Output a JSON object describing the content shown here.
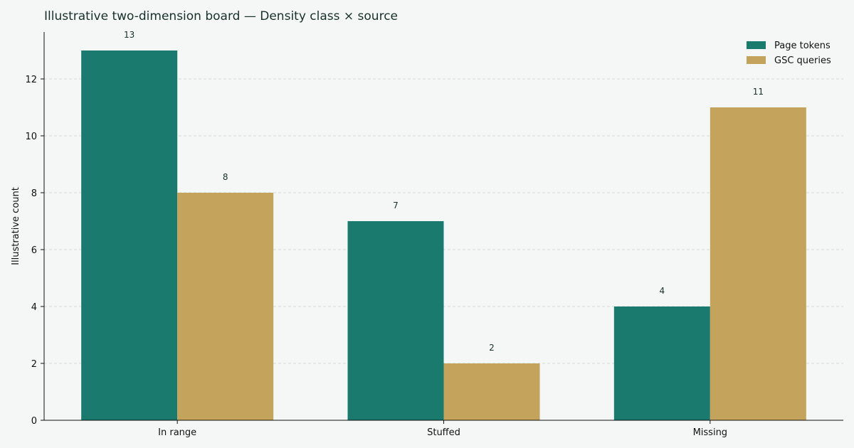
{
  "chart_data": {
    "type": "bar",
    "title": "Illustrative two-dimension board — Density class × source",
    "xlabel": "",
    "ylabel": "Illustrative count",
    "categories": [
      "In range",
      "Stuffed",
      "Missing"
    ],
    "series": [
      {
        "name": "Page tokens",
        "values": [
          13,
          7,
          4
        ],
        "color": "#1b7a6e"
      },
      {
        "name": "GSC queries",
        "values": [
          8,
          2,
          11
        ],
        "color": "#c4a35c"
      }
    ],
    "ylim": [
      0,
      13.65
    ],
    "yticks": [
      0,
      2,
      4,
      6,
      8,
      10,
      12
    ],
    "grid": true,
    "legend": "top-right"
  }
}
